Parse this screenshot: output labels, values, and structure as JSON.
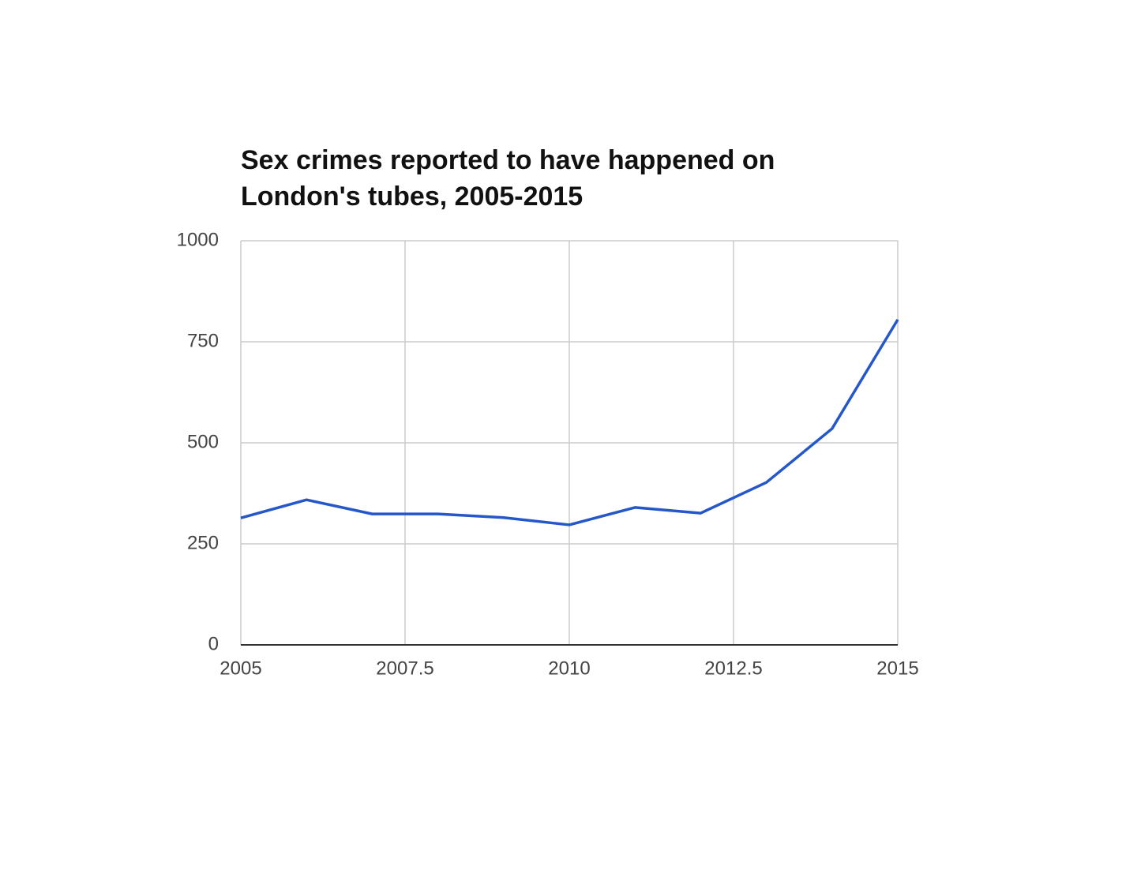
{
  "chart_data": {
    "type": "line",
    "title": "Sex crimes reported to have happened on London's tubes, 2005-2015",
    "x": [
      2005,
      2006,
      2007,
      2008,
      2009,
      2010,
      2011,
      2012,
      2013,
      2014,
      2015
    ],
    "series": [
      {
        "color": "#2457c9",
        "values": [
          314,
          359,
          324,
          324,
          315,
          297,
          340,
          326,
          402,
          535,
          805
        ]
      }
    ],
    "xlim": [
      2005,
      2015
    ],
    "xticks": [
      2005,
      2007.5,
      2010,
      2012.5,
      2015
    ],
    "ylim": [
      0,
      1000
    ],
    "yticks": [
      0,
      250,
      500,
      750,
      1000
    ],
    "grid": true
  }
}
